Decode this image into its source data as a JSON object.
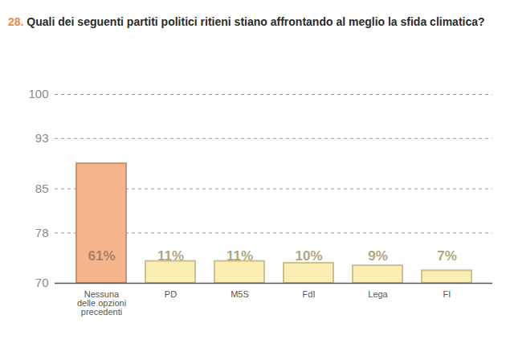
{
  "chart_data": {
    "type": "bar",
    "number": "28.",
    "title": "Quali dei seguenti partiti politici ritieni stiano affrontando al meglio la sfida climatica?",
    "categories": [
      "Nessuna\ndelle opzioni\nprecedenti",
      "PD",
      "M5S",
      "FdI",
      "Lega",
      "FI"
    ],
    "values": [
      89,
      73.5,
      73.5,
      73.2,
      72.8,
      72
    ],
    "annotations": [
      "61%",
      "11%",
      "11%",
      "10%",
      "9%",
      "7%"
    ],
    "colors": [
      "#f5b68e",
      "#faeeb3",
      "#faeeb3",
      "#faeeb3",
      "#faeeb3",
      "#faeeb3"
    ],
    "ylim": [
      70,
      100
    ],
    "yticks": [
      70,
      78,
      85,
      93,
      100
    ],
    "grid": true
  }
}
